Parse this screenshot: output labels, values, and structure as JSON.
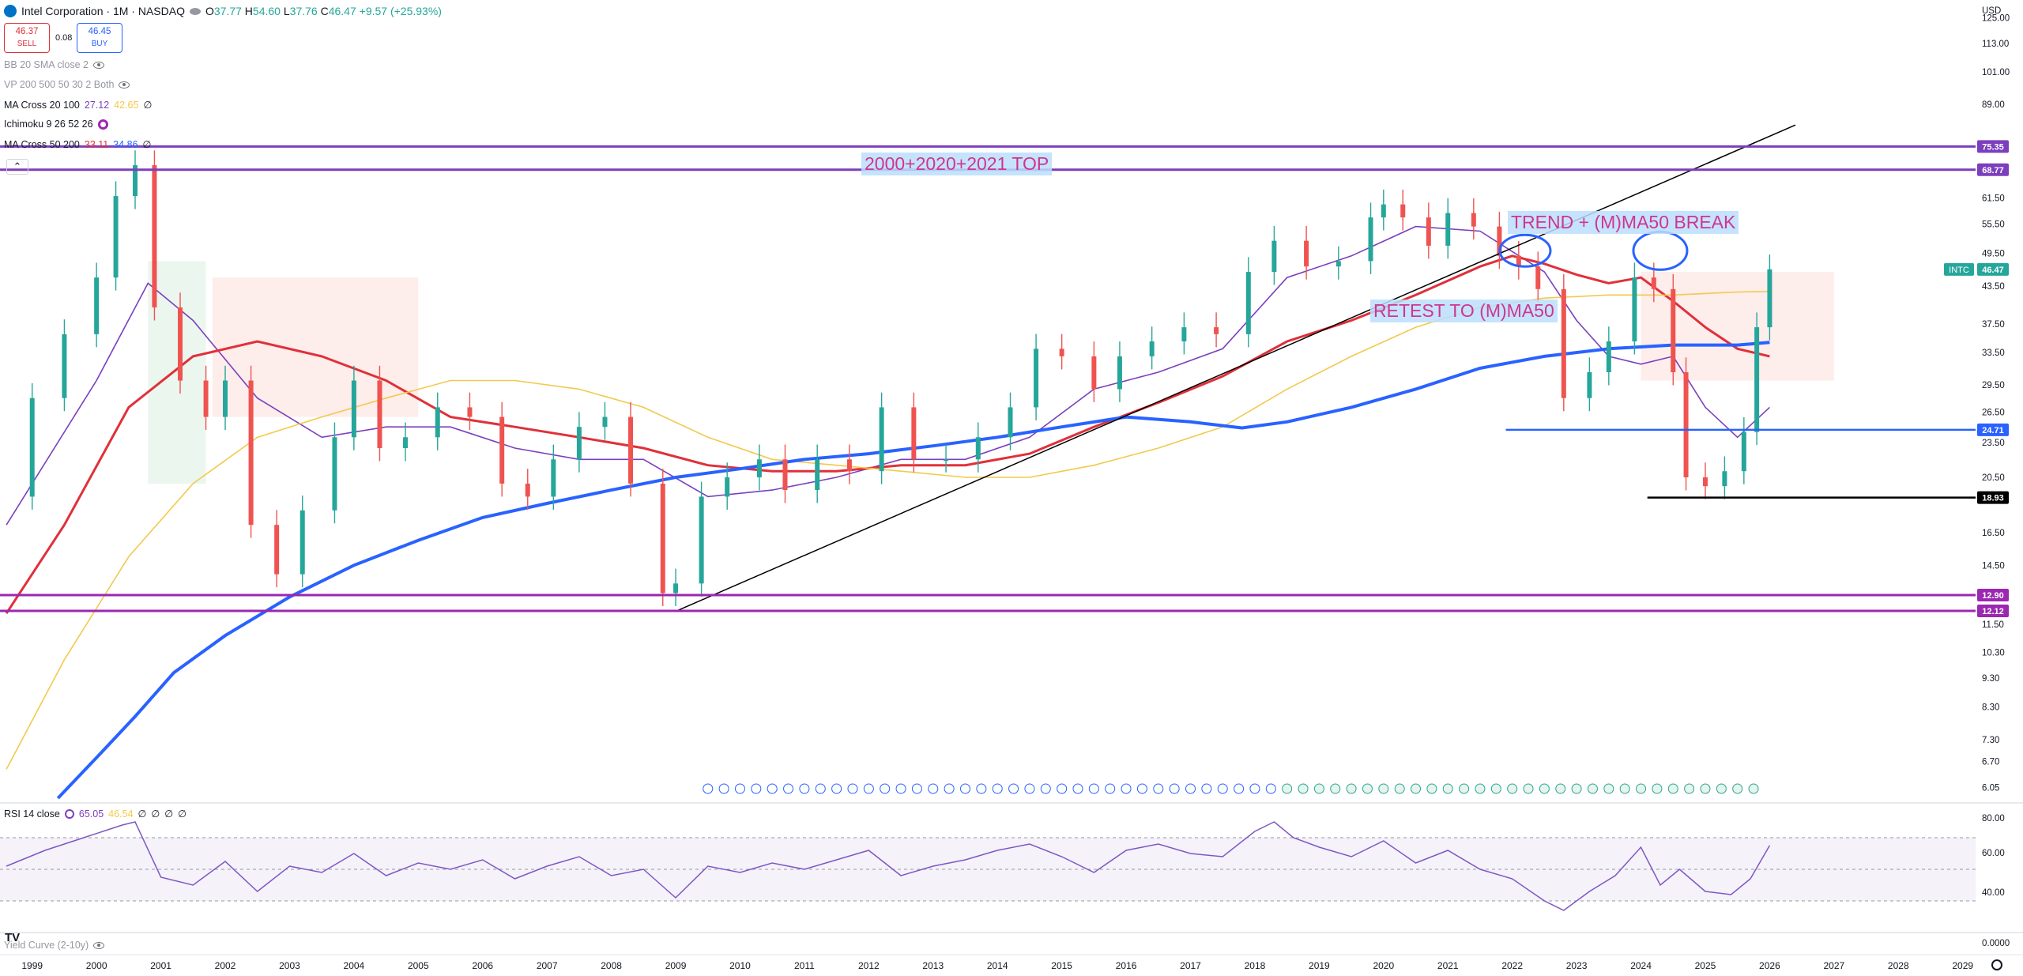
{
  "header": {
    "symbol_title": "Intel Corporation · 1M · NASDAQ",
    "ohlc": {
      "o_label": "O",
      "o": "37.77",
      "h_label": "H",
      "h": "54.60",
      "l_label": "L",
      "l": "37.76",
      "c_label": "C",
      "c": "46.47",
      "change": "+9.57 (+25.93%)"
    },
    "sell_price": "46.37",
    "sell_label": "SELL",
    "spread": "0.08",
    "buy_price": "46.45",
    "buy_label": "BUY",
    "currency": "USD"
  },
  "indicators": [
    {
      "label": "BB 20 SMA close 2",
      "values": [],
      "dim": true,
      "icon": "eye-slash-icon"
    },
    {
      "label": "VP 200 500 50 30 2 Both",
      "values": [],
      "dim": true,
      "icon": "eye-slash-icon"
    },
    {
      "label": "MA Cross 20 100",
      "values": [
        "27.12",
        "42.65",
        "∅"
      ],
      "colors": [
        "#7b3fbe",
        "#f2c94c",
        "#131722"
      ]
    },
    {
      "label": "Ichimoku 9 26 52 26",
      "values": [],
      "icon": "settings-icon"
    },
    {
      "label": "MA Cross 50 200",
      "values": [
        "33.11",
        "34.86",
        "∅"
      ],
      "colors": [
        "#e0303a",
        "#2962ff",
        "#131722"
      ]
    }
  ],
  "rsi_panel": {
    "label": "RSI 14 close",
    "values": [
      "65.05",
      "46.54",
      "∅",
      "∅",
      "∅",
      "∅"
    ],
    "axis": [
      "80.00",
      "60.00",
      "40.00"
    ],
    "yield_label": "Yield Curve (2-10y)",
    "yield_axis": "0.0000"
  },
  "price_axis": [
    "125.00",
    "113.00",
    "101.00",
    "89.00",
    "61.50",
    "55.50",
    "49.50",
    "43.50",
    "37.50",
    "33.50",
    "29.50",
    "26.50",
    "23.50",
    "20.50",
    "16.50",
    "14.50",
    "11.50",
    "10.30",
    "9.30",
    "8.30",
    "7.30",
    "6.70",
    "6.05"
  ],
  "price_tags": [
    {
      "value": "75.35",
      "color": "#7b3fbe"
    },
    {
      "value": "68.77",
      "color": "#7b3fbe"
    },
    {
      "value": "46.47",
      "color": "#26a69a",
      "symbol": "INTC"
    },
    {
      "value": "24.71",
      "color": "#2962ff"
    },
    {
      "value": "18.93",
      "color": "#000000"
    },
    {
      "value": "12.90",
      "color": "#9c27b0"
    },
    {
      "value": "12.12",
      "color": "#9c27b0"
    }
  ],
  "time_axis": [
    "1999",
    "2000",
    "2001",
    "2002",
    "2003",
    "2004",
    "2005",
    "2006",
    "2007",
    "2008",
    "2009",
    "2010",
    "2011",
    "2012",
    "2013",
    "2014",
    "2015",
    "2016",
    "2017",
    "2018",
    "2019",
    "2020",
    "2021",
    "2022",
    "2023",
    "2024",
    "2025",
    "2026",
    "2027",
    "2028",
    "2029"
  ],
  "annotations": {
    "top_label": "2000+2020+2021 TOP",
    "trend_label": "TREND + (M)MA50 BREAK",
    "retest_label": "RETEST TO (M)MA50"
  },
  "chart_data": {
    "type": "line",
    "title": "Intel Corporation · 1M · NASDAQ",
    "ylabel": "USD",
    "log_scale": true,
    "ylim": [
      5.8,
      130
    ],
    "xlim": [
      1998.5,
      2029.2
    ],
    "horizontal_levels": [
      75.35,
      68.77,
      24.71,
      18.93,
      12.9,
      12.12
    ],
    "series": [
      {
        "name": "INTC",
        "color": "#26a69a",
        "x": [
          1998.6,
          1999.0,
          1999.5,
          2000.0,
          2000.3,
          2000.6,
          2000.9,
          2001.3,
          2001.7,
          2002.0,
          2002.4,
          2002.8,
          2003.2,
          2003.7,
          2004.0,
          2004.4,
          2004.8,
          2005.3,
          2005.8,
          2006.3,
          2006.7,
          2007.1,
          2007.5,
          2007.9,
          2008.3,
          2008.8,
          2009.0,
          2009.4,
          2009.8,
          2010.3,
          2010.7,
          2011.2,
          2011.7,
          2012.2,
          2012.7,
          2013.2,
          2013.7,
          2014.2,
          2014.6,
          2015.0,
          2015.5,
          2015.9,
          2016.4,
          2016.9,
          2017.4,
          2017.9,
          2018.3,
          2018.8,
          2019.3,
          2019.8,
          2020.0,
          2020.3,
          2020.7,
          2021.0,
          2021.4,
          2021.8,
          2022.1,
          2022.4,
          2022.8,
          2023.2,
          2023.5,
          2023.9,
          2024.2,
          2024.5,
          2024.7,
          2025.0,
          2025.3,
          2025.6,
          2025.8,
          2026.0
        ],
        "values": [
          19.0,
          28,
          36,
          45,
          62,
          70,
          40,
          30,
          26,
          30,
          17,
          14,
          18,
          24,
          30,
          23,
          24,
          27,
          26,
          20,
          19,
          22,
          25,
          26,
          20,
          13,
          13.5,
          19,
          20.5,
          22,
          19.5,
          22,
          21,
          27,
          22,
          22,
          24,
          27,
          34,
          33,
          29,
          33,
          35,
          37,
          36,
          46,
          52,
          47,
          48,
          57,
          60,
          57,
          51,
          58,
          55,
          49,
          47,
          43,
          28,
          31,
          35,
          45,
          43,
          31,
          20.5,
          19.8,
          21,
          24.5,
          37,
          46.47
        ]
      },
      {
        "name": "MA 20",
        "color": "#7b3fbe",
        "x": [
          1998.6,
          2000.0,
          2000.8,
          2001.5,
          2002.5,
          2003.5,
          2004.5,
          2005.5,
          2006.5,
          2007.5,
          2008.5,
          2009.5,
          2010.5,
          2011.5,
          2012.5,
          2013.5,
          2014.5,
          2015.5,
          2016.5,
          2017.5,
          2018.5,
          2019.5,
          2020.5,
          2021.5,
          2022.5,
          2023.0,
          2023.5,
          2024.0,
          2024.5,
          2025.0,
          2025.5,
          2026.0
        ],
        "values": [
          17,
          30,
          44,
          38,
          28,
          24,
          25,
          25,
          23,
          22,
          22,
          19,
          19.5,
          20.5,
          22,
          22,
          24,
          29,
          31,
          34,
          45,
          49,
          55,
          54,
          46,
          38,
          33,
          32,
          33,
          27,
          24,
          27
        ]
      },
      {
        "name": "MA 50",
        "color": "#e0303a",
        "x": [
          1998.6,
          1999.5,
          2000.5,
          2001.5,
          2002.5,
          2003.5,
          2004.5,
          2005.5,
          2006.5,
          2007.5,
          2008.5,
          2009.5,
          2010.5,
          2011.5,
          2012.5,
          2013.5,
          2014.5,
          2015.5,
          2016.5,
          2017.5,
          2018.5,
          2019.5,
          2020.5,
          2021.5,
          2022.0,
          2022.5,
          2023.0,
          2023.5,
          2024.0,
          2024.5,
          2025.0,
          2025.5,
          2026.0
        ],
        "values": [
          12,
          17,
          27,
          33,
          35,
          33,
          30,
          26,
          25,
          24,
          23,
          21.5,
          21,
          21,
          21.5,
          21.5,
          22.5,
          25,
          27.5,
          30.5,
          35,
          38,
          42,
          47,
          49,
          47.5,
          45.5,
          44,
          45,
          41,
          37,
          34,
          33
        ]
      },
      {
        "name": "MA 100",
        "color": "#f2c94c",
        "x": [
          1998.6,
          1999.5,
          2000.5,
          2001.5,
          2002.5,
          2003.5,
          2004.5,
          2005.5,
          2006.5,
          2007.5,
          2008.5,
          2009.5,
          2010.5,
          2011.5,
          2012.5,
          2013.5,
          2014.5,
          2015.5,
          2016.5,
          2017.5,
          2018.5,
          2019.5,
          2020.5,
          2021.5,
          2022.5,
          2023.5,
          2024.5,
          2025.5,
          2026.0
        ],
        "values": [
          6.5,
          10,
          15,
          20,
          24,
          26,
          28,
          30,
          30,
          29,
          27,
          24,
          22,
          21.5,
          21,
          20.5,
          20.5,
          21.5,
          23,
          25,
          29,
          33,
          37,
          40,
          41.5,
          42,
          42,
          42.5,
          42.6
        ]
      },
      {
        "name": "MA 200",
        "color": "#2962ff",
        "x": [
          1999.4,
          2000.0,
          2000.6,
          2001.2,
          2002.0,
          2003.0,
          2004.0,
          2005.0,
          2006.0,
          2007.0,
          2008.0,
          2009.0,
          2010.0,
          2011.0,
          2012.0,
          2013.0,
          2014.0,
          2015.0,
          2016.0,
          2017.0,
          2017.8,
          2018.5,
          2019.5,
          2020.5,
          2021.5,
          2022.5,
          2023.5,
          2024.5,
          2025.5,
          2026.0
        ],
        "values": [
          5.8,
          6.8,
          8,
          9.5,
          11,
          12.8,
          14.5,
          16,
          17.5,
          18.5,
          19.5,
          20.5,
          21.2,
          22,
          22.5,
          23.2,
          24,
          25,
          26,
          25.5,
          24.9,
          25.5,
          27,
          29,
          31.5,
          33,
          34,
          34.5,
          34.5,
          34.86
        ]
      }
    ],
    "rsi": {
      "ylim": [
        20,
        85
      ],
      "x": [
        1998.6,
        1999.2,
        1999.8,
        2000.4,
        2000.6,
        2001.0,
        2001.5,
        2002.0,
        2002.5,
        2003.0,
        2003.5,
        2004.0,
        2004.5,
        2005.0,
        2005.5,
        2006.0,
        2006.5,
        2007.0,
        2007.5,
        2008.0,
        2008.5,
        2009.0,
        2009.5,
        2010.0,
        2010.5,
        2011.0,
        2011.5,
        2012.0,
        2012.5,
        2013.0,
        2013.5,
        2014.0,
        2014.5,
        2015.0,
        2015.5,
        2016.0,
        2016.5,
        2017.0,
        2017.5,
        2018.0,
        2018.3,
        2018.6,
        2019.0,
        2019.5,
        2020.0,
        2020.5,
        2021.0,
        2021.5,
        2022.0,
        2022.5,
        2022.8,
        2023.2,
        2023.6,
        2024.0,
        2024.3,
        2024.6,
        2025.0,
        2025.4,
        2025.7,
        2026.0
      ],
      "values": [
        52,
        62,
        70,
        78,
        80,
        45,
        40,
        55,
        36,
        52,
        48,
        60,
        46,
        54,
        50,
        56,
        44,
        52,
        58,
        46,
        50,
        32,
        52,
        48,
        54,
        50,
        56,
        62,
        46,
        52,
        56,
        62,
        66,
        58,
        48,
        62,
        66,
        60,
        58,
        74,
        80,
        70,
        64,
        58,
        68,
        54,
        62,
        50,
        44,
        30,
        24,
        36,
        46,
        64,
        40,
        50,
        36,
        34,
        44,
        65.05
      ]
    }
  }
}
